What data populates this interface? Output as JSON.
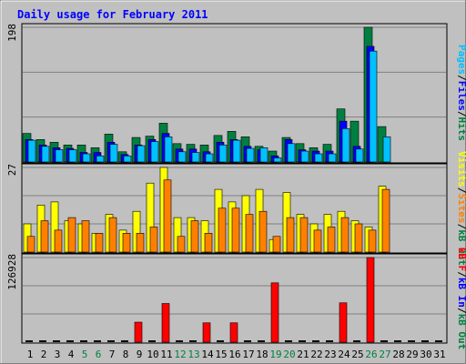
{
  "title": "Daily usage for February 2011",
  "colors": {
    "title": "#0000ff",
    "hits": "#008040",
    "files": "#0000ff",
    "pages": "#00c0ff",
    "visits": "#ffff00",
    "sites": "#ff8000",
    "kbin": "#0000ff",
    "kbout": "#008040",
    "kbf": "#ff0000",
    "weekend_day_label": "#008040",
    "weekday_day_label": "#000000"
  },
  "panels": {
    "hits": {
      "max_label": "198",
      "legend": [
        "Pages",
        "/",
        "Files",
        "/",
        "Hits"
      ],
      "legend_colors": [
        "#00c0ff",
        "#000000",
        "#0000ff",
        "#000000",
        "#008040"
      ]
    },
    "visits": {
      "max_label": "27",
      "legend": [
        "Visits",
        "/",
        "Sites",
        "/",
        "kB Out"
      ],
      "legend_colors": [
        "#ffff00",
        "#000000",
        "#ff8000",
        "#000000",
        "#008040"
      ]
    },
    "kb": {
      "max_label": "126928",
      "legend": [
        "kB F",
        "/",
        "kB In",
        "/",
        "kB Out"
      ],
      "legend_colors": [
        "#ff0000",
        "#000000",
        "#0000ff",
        "#000000",
        "#008040"
      ]
    }
  },
  "chart_data": {
    "type": "bar",
    "title": "Daily usage for February 2011",
    "categories": [
      "1",
      "2",
      "3",
      "4",
      "5",
      "6",
      "7",
      "8",
      "9",
      "10",
      "11",
      "12",
      "13",
      "14",
      "15",
      "16",
      "17",
      "18",
      "19",
      "20",
      "21",
      "22",
      "23",
      "24",
      "25",
      "26",
      "27",
      "28",
      "29",
      "30",
      "31"
    ],
    "weekend_days": [
      "5",
      "6",
      "12",
      "13",
      "19",
      "20",
      "26",
      "27"
    ],
    "panels": [
      {
        "name": "hits-files-pages",
        "ylim": [
          0,
          198
        ],
        "series": [
          {
            "name": "Hits",
            "values": [
              42,
              33,
              29,
              25,
              25,
              21,
              41,
              15,
              36,
              38,
              57,
              27,
              26,
              25,
              39,
              45,
              37,
              23,
              16,
              36,
              27,
              21,
              26,
              78,
              60,
              198,
              52,
              0,
              0,
              0,
              0
            ]
          },
          {
            "name": "Files",
            "values": [
              33,
              25,
              21,
              20,
              14,
              14,
              29,
              11,
              25,
              33,
              42,
              19,
              19,
              15,
              29,
              33,
              23,
              18,
              9,
              33,
              18,
              16,
              16,
              60,
              23,
              170,
              0,
              0,
              0,
              0,
              0
            ]
          },
          {
            "name": "Pages",
            "values": [
              32,
              23,
              18,
              18,
              12,
              9,
              26,
              9,
              24,
              30,
              37,
              15,
              14,
              12,
              25,
              32,
              20,
              21,
              6,
              27,
              16,
              12,
              12,
              49,
              19,
              163,
              37,
              0,
              0,
              0,
              0
            ]
          }
        ]
      },
      {
        "name": "visits-sites",
        "ylim": [
          0,
          27
        ],
        "series": [
          {
            "name": "Visits",
            "values": [
              9,
              15,
              16,
              10,
              9,
              6,
              12,
              7,
              13,
              22,
              27,
              11,
              11,
              10,
              20,
              16,
              18,
              20,
              4,
              19,
              12,
              9,
              12,
              13,
              10,
              8,
              21,
              0,
              0,
              0,
              0
            ]
          },
          {
            "name": "Sites",
            "values": [
              5,
              10,
              7,
              11,
              10,
              6,
              11,
              6,
              6,
              8,
              23,
              5,
              10,
              6,
              14,
              14,
              12,
              13,
              5,
              11,
              11,
              7,
              8,
              11,
              9,
              7,
              20,
              0,
              0,
              0,
              0
            ]
          }
        ]
      },
      {
        "name": "kb-f",
        "ylim": [
          0,
          126928
        ],
        "series": [
          {
            "name": "kB F",
            "values": [
              0,
              0,
              0,
              0,
              0,
              0,
              0,
              0,
              30000,
              0,
              58000,
              0,
              0,
              29000,
              0,
              29000,
              0,
              0,
              89000,
              0,
              0,
              0,
              0,
              59000,
              0,
              126928,
              0,
              0,
              0,
              0,
              0
            ]
          }
        ]
      }
    ]
  }
}
